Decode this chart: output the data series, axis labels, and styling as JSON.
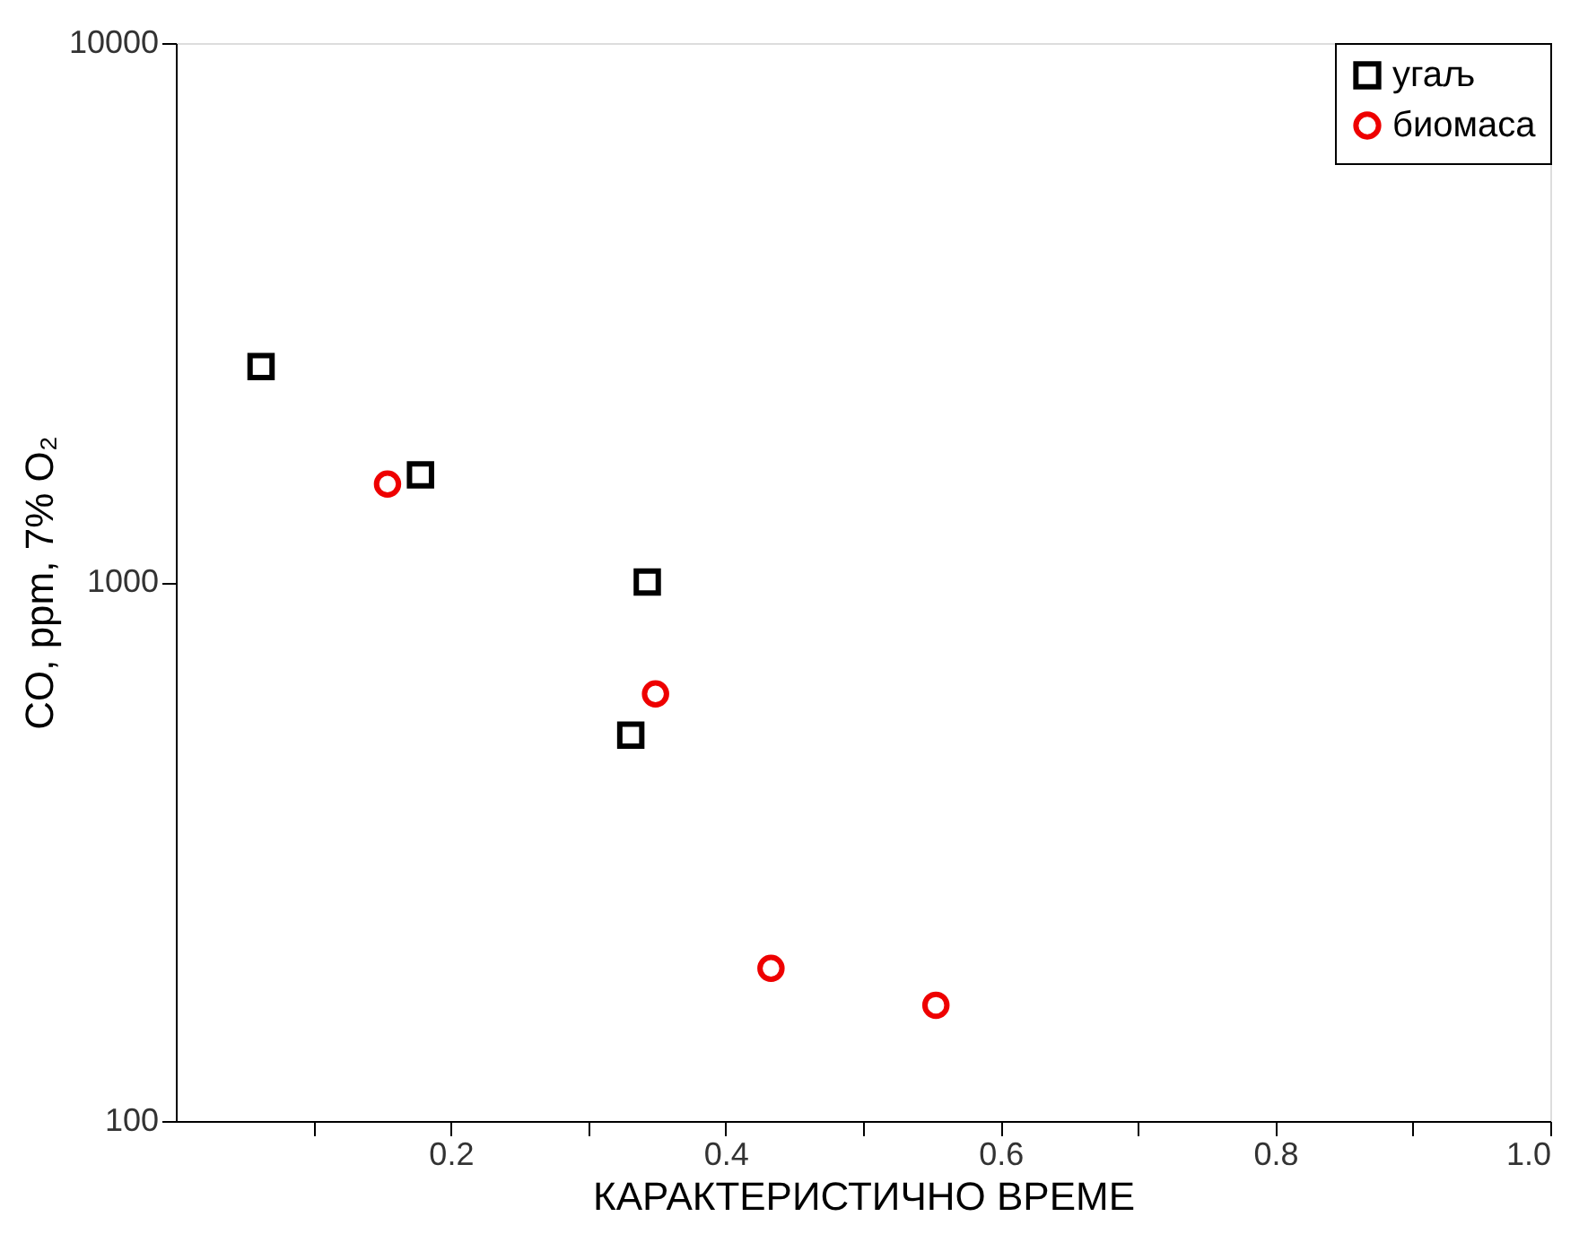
{
  "chart_data": {
    "type": "scatter",
    "xlabel": "КАРАКТЕРИСТИЧНО ВРЕМЕ",
    "ylabel": "CO, ppm, 7% O₂",
    "series": [
      {
        "name": "угаљ",
        "color": "#000000",
        "marker": "square",
        "x": [
          0.062,
          0.178,
          0.343,
          0.331
        ],
        "values": [
          2510,
          1580,
          1000,
          520
        ]
      },
      {
        "name": "биомаса",
        "color": "#ee0000",
        "marker": "circle",
        "x": [
          0.154,
          0.349,
          0.433,
          0.553
        ],
        "values": [
          1520,
          620,
          192,
          164
        ]
      }
    ],
    "xlim": [
      0,
      1
    ],
    "xticks": [
      {
        "value": 0.1,
        "label": null
      },
      0.2,
      {
        "value": 0.3,
        "label": null
      },
      0.4,
      {
        "value": 0.5,
        "label": null
      },
      0.6,
      {
        "value": 0.7,
        "label": null
      },
      0.8,
      {
        "value": 0.9,
        "label": null
      },
      {
        "value": 1,
        "label": "1.0"
      }
    ],
    "ylim": [
      100,
      10000
    ],
    "yticks": [
      100,
      1000,
      10000
    ],
    "log": "y",
    "grid": false,
    "legend": "top right"
  }
}
